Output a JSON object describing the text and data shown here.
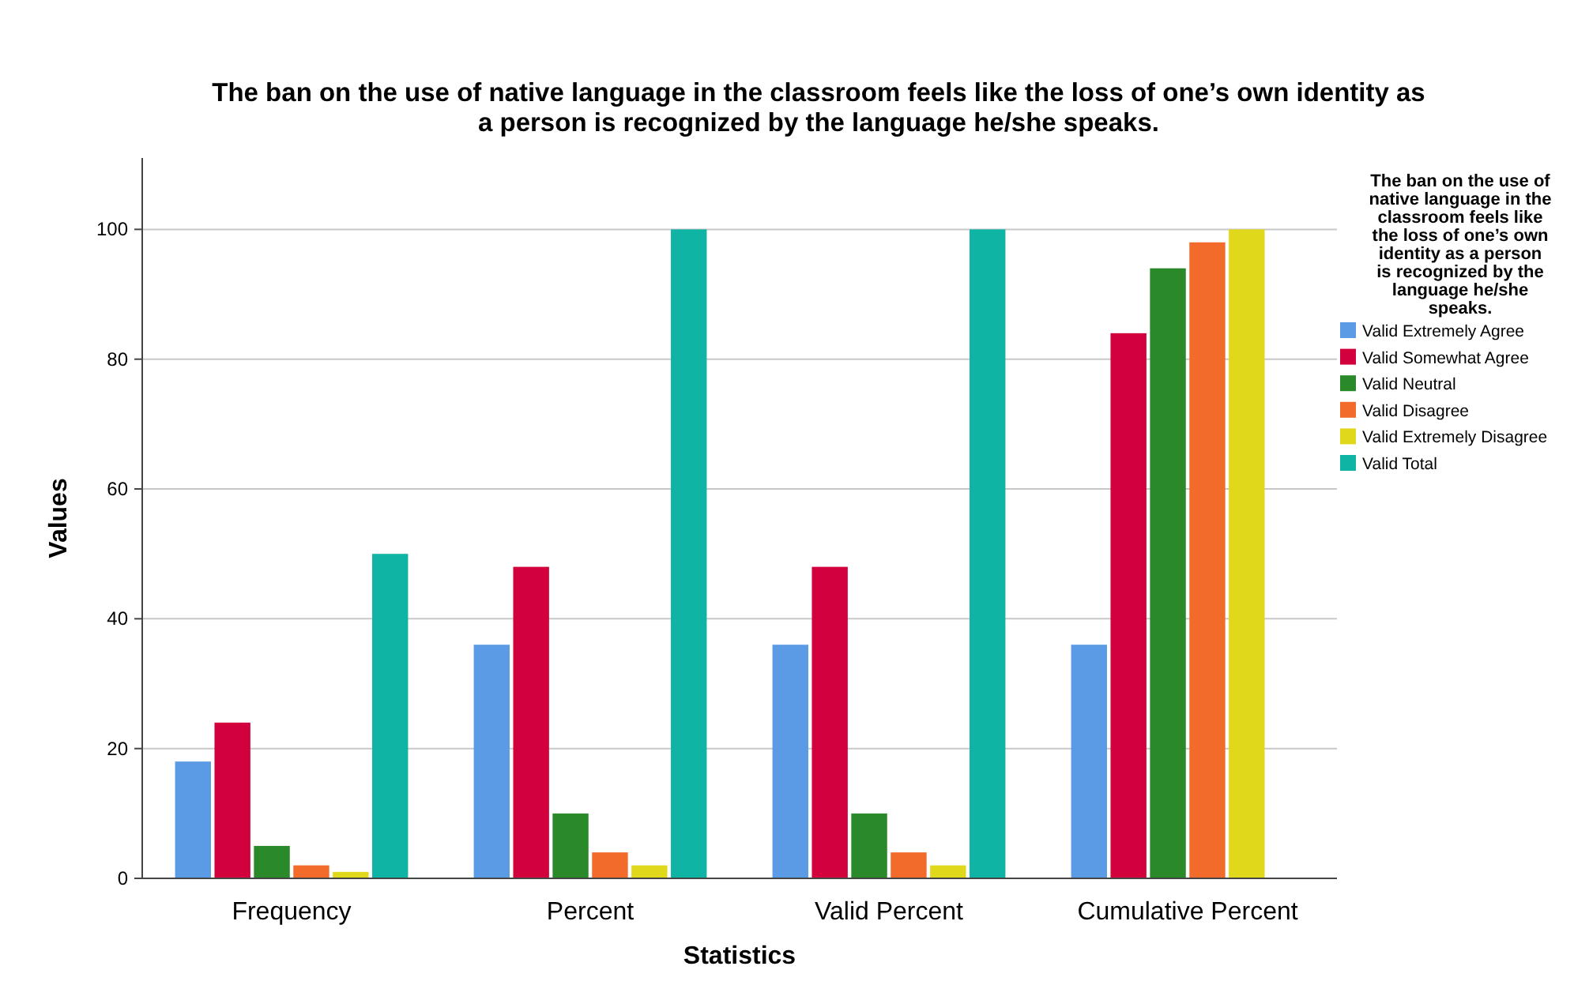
{
  "chart_data": {
    "type": "bar",
    "title": "The ban on the use of native language in the classroom feels like the loss of one’s own identity as a person is recognized by the language he/she speaks.",
    "xlabel": "Statistics",
    "ylabel": "Values",
    "legend_title": "The ban on the use of native language in the classroom feels like the loss of one’s own identity as a person is recognized by the language he/she speaks.",
    "categories": [
      "Frequency",
      "Percent",
      "Valid Percent",
      "Cumulative Percent"
    ],
    "series": [
      {
        "name": "Valid Extremely Agree",
        "color": "#5b9be6",
        "values": [
          18,
          36,
          36,
          36
        ]
      },
      {
        "name": "Valid Somewhat Agree",
        "color": "#d2003c",
        "values": [
          24,
          48,
          48,
          84
        ]
      },
      {
        "name": "Valid Neutral",
        "color": "#2a8a2a",
        "values": [
          5,
          10,
          10,
          94
        ]
      },
      {
        "name": "Valid Disagree",
        "color": "#f26b2b",
        "values": [
          2,
          4,
          4,
          98
        ]
      },
      {
        "name": "Valid Extremely Disagree",
        "color": "#e0d81a",
        "values": [
          1,
          2,
          2,
          100
        ]
      },
      {
        "name": "Valid Total",
        "color": "#10b4a4",
        "values": [
          50,
          100,
          100,
          null
        ]
      }
    ],
    "ylim": [
      0,
      111
    ],
    "yticks": [
      0,
      20,
      40,
      60,
      80,
      100
    ],
    "grid": "y",
    "legend": "right"
  }
}
